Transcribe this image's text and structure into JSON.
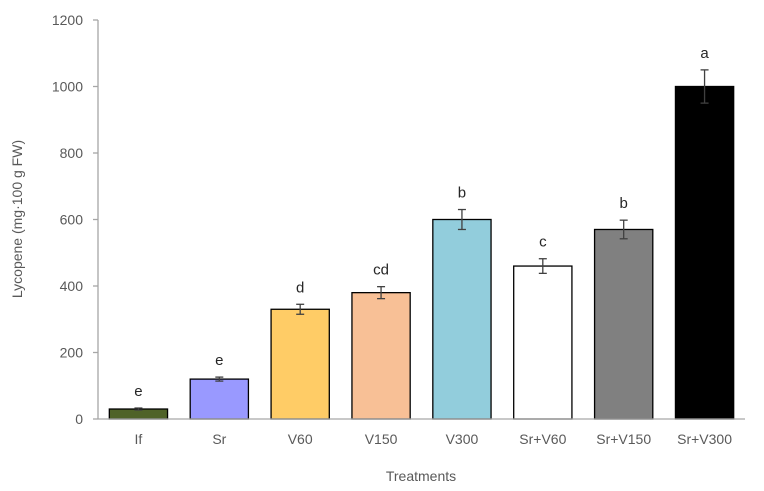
{
  "chart_data": {
    "type": "bar",
    "title": "",
    "xlabel": "Treatments",
    "ylabel": "Lycopene (mg·100 g FW)",
    "ylim": [
      0,
      1200
    ],
    "yticks": [
      0,
      200,
      400,
      600,
      800,
      1000,
      1200
    ],
    "grid": false,
    "legend": "none",
    "categories": [
      "If",
      "Sr",
      "V60",
      "V150",
      "V300",
      "Sr+V60",
      "Sr+V150",
      "Sr+V300"
    ],
    "values": [
      30,
      120,
      330,
      380,
      600,
      460,
      570,
      1000
    ],
    "errors": [
      3,
      6,
      15,
      18,
      30,
      22,
      28,
      50
    ],
    "significance_letters": [
      "e",
      "e",
      "d",
      "cd",
      "b",
      "c",
      "b",
      "a"
    ],
    "colors": [
      "#4f6228",
      "#9999ff",
      "#ffcc66",
      "#f8c096",
      "#92cddc",
      "#ffffff",
      "#808080",
      "#000000"
    ],
    "axis_color": "#a6a6a6",
    "bar_edge_color": "#000000",
    "error_bar_color": "#404040"
  }
}
